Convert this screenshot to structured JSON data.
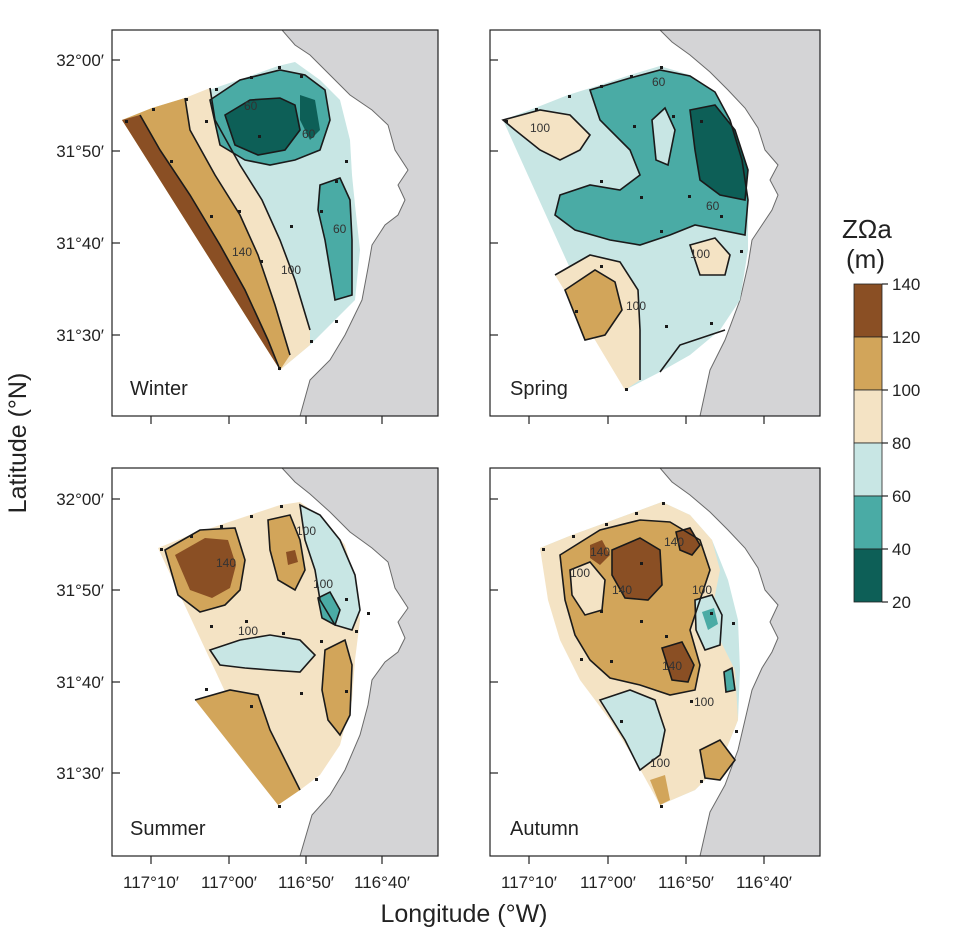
{
  "figure": {
    "x_axis_title": "Longitude (°W)",
    "y_axis_title": "Latitude (°N)"
  },
  "axes": {
    "lon_ticks": [
      "117°10′",
      "117°00′",
      "116°50′",
      "116°40′"
    ],
    "lat_ticks": [
      "32°00′",
      "31°50′",
      "31°40′",
      "31°30′"
    ]
  },
  "panels": [
    {
      "label": "Winter",
      "contour_labels": [
        "60",
        "60",
        "60",
        "140",
        "100"
      ]
    },
    {
      "label": "Spring",
      "contour_labels": [
        "60",
        "100",
        "60",
        "100",
        "100"
      ]
    },
    {
      "label": "Summer",
      "contour_labels": [
        "100",
        "140",
        "100",
        "100"
      ]
    },
    {
      "label": "Autumn",
      "contour_labels": [
        "140",
        "140",
        "100",
        "140",
        "100",
        "140",
        "100",
        "100"
      ]
    }
  ],
  "legend": {
    "title_line1": "ZΩa",
    "title_line2": "(m)",
    "ticks": [
      "140",
      "120",
      "100",
      "80",
      "60",
      "40",
      "20"
    ],
    "bins": [
      {
        "from": 120,
        "to": 140,
        "color": "#8a4f24"
      },
      {
        "from": 100,
        "to": 120,
        "color": "#d2a55a"
      },
      {
        "from": 80,
        "to": 100,
        "color": "#f4e3c4"
      },
      {
        "from": 60,
        "to": 80,
        "color": "#c8e6e4"
      },
      {
        "from": 40,
        "to": 60,
        "color": "#4aaba5"
      },
      {
        "from": 20,
        "to": 40,
        "color": "#0d5f57"
      }
    ]
  },
  "colors": {
    "land": "#d4d4d6",
    "level_140": "#8a4f24",
    "level_120": "#d2a55a",
    "level_100": "#f4e3c4",
    "level_80": "#c8e6e4",
    "level_60": "#4aaba5",
    "level_40": "#0d5f57"
  }
}
